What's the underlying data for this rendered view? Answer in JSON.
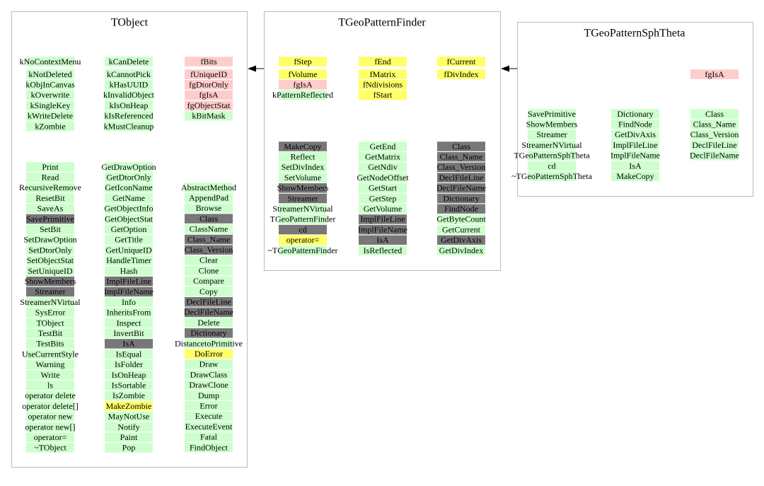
{
  "boxes": [
    {
      "title": "TObject",
      "columns": [
        [
          {
            "label": "kNoContextMenu",
            "color": "#ccffcc"
          }
        ],
        [
          {
            "label": "kCanDelete",
            "color": "#ccffcc"
          }
        ],
        [
          {
            "label": "fBits",
            "color": "#ffcccc"
          }
        ],
        [
          {
            "label": "kNotDeleted",
            "color": "#ccffcc"
          },
          {
            "label": "kObjInCanvas",
            "color": "#ccffcc"
          },
          {
            "label": "kOverwrite",
            "color": "#ccffcc"
          },
          {
            "label": "kSingleKey",
            "color": "#ccffcc"
          },
          {
            "label": "kWriteDelete",
            "color": "#ccffcc"
          },
          {
            "label": "kZombie",
            "color": "#ccffcc"
          }
        ],
        [
          {
            "label": "kCannotPick",
            "color": "#ccffcc"
          },
          {
            "label": "kHasUUID",
            "color": "#ccffcc"
          },
          {
            "label": "kInvalidObject",
            "color": "#ccffcc"
          },
          {
            "label": "kIsOnHeap",
            "color": "#ccffcc"
          },
          {
            "label": "kIsReferenced",
            "color": "#ccffcc"
          },
          {
            "label": "kMustCleanup",
            "color": "#ccffcc"
          }
        ],
        [
          {
            "label": "fUniqueID",
            "color": "#ffcccc"
          },
          {
            "label": "fgDtorOnly",
            "color": "#ffcccc"
          },
          {
            "label": "fgIsA",
            "color": "#ffcccc"
          },
          {
            "label": "fgObjectStat",
            "color": "#ffcccc"
          },
          {
            "label": "kBitMask",
            "color": "#ccffcc"
          }
        ],
        [
          {
            "label": "Print",
            "color": "#ccffcc"
          },
          {
            "label": "Read",
            "color": "#ccffcc"
          },
          {
            "label": "RecursiveRemove",
            "color": "#ccffcc"
          },
          {
            "label": "ResetBit",
            "color": "#ccffcc"
          },
          {
            "label": "SaveAs",
            "color": "#ccffcc"
          },
          {
            "label": "SavePrimitive",
            "color": "#777777"
          },
          {
            "label": "SetBit",
            "color": "#ccffcc"
          },
          {
            "label": "SetDrawOption",
            "color": "#ccffcc"
          },
          {
            "label": "SetDtorOnly",
            "color": "#ccffcc"
          },
          {
            "label": "SetObjectStat",
            "color": "#ccffcc"
          },
          {
            "label": "SetUniqueID",
            "color": "#ccffcc"
          },
          {
            "label": "ShowMembers",
            "color": "#777777"
          },
          {
            "label": "Streamer",
            "color": "#777777"
          },
          {
            "label": "StreamerNVirtual",
            "color": "#ccffcc"
          },
          {
            "label": "SysError",
            "color": "#ccffcc"
          },
          {
            "label": "TObject",
            "color": "#ccffcc"
          },
          {
            "label": "TestBit",
            "color": "#ccffcc"
          },
          {
            "label": "TestBits",
            "color": "#ccffcc"
          },
          {
            "label": "UseCurrentStyle",
            "color": "#ccffcc"
          },
          {
            "label": "Warning",
            "color": "#ccffcc"
          },
          {
            "label": "Write",
            "color": "#ccffcc"
          },
          {
            "label": "ls",
            "color": "#ccffcc"
          },
          {
            "label": "operator delete",
            "color": "#ccffcc"
          },
          {
            "label": "operator delete[]",
            "color": "#ccffcc"
          },
          {
            "label": "operator new",
            "color": "#ccffcc"
          },
          {
            "label": "operator new[]",
            "color": "#ccffcc"
          },
          {
            "label": "operator=",
            "color": "#ccffcc"
          },
          {
            "label": "~TObject",
            "color": "#ccffcc"
          }
        ],
        [
          {
            "label": "GetDrawOption",
            "color": "#ccffcc"
          },
          {
            "label": "GetDtorOnly",
            "color": "#ccffcc"
          },
          {
            "label": "GetIconName",
            "color": "#ccffcc"
          },
          {
            "label": "GetName",
            "color": "#ccffcc"
          },
          {
            "label": "GetObjectInfo",
            "color": "#ccffcc"
          },
          {
            "label": "GetObjectStat",
            "color": "#ccffcc"
          },
          {
            "label": "GetOption",
            "color": "#ccffcc"
          },
          {
            "label": "GetTitle",
            "color": "#ccffcc"
          },
          {
            "label": "GetUniqueID",
            "color": "#ccffcc"
          },
          {
            "label": "HandleTimer",
            "color": "#ccffcc"
          },
          {
            "label": "Hash",
            "color": "#ccffcc"
          },
          {
            "label": "ImplFileLine",
            "color": "#777777"
          },
          {
            "label": "ImplFileName",
            "color": "#777777"
          },
          {
            "label": "Info",
            "color": "#ccffcc"
          },
          {
            "label": "InheritsFrom",
            "color": "#ccffcc"
          },
          {
            "label": "Inspect",
            "color": "#ccffcc"
          },
          {
            "label": "InvertBit",
            "color": "#ccffcc"
          },
          {
            "label": "IsA",
            "color": "#777777"
          },
          {
            "label": "IsEqual",
            "color": "#ccffcc"
          },
          {
            "label": "IsFolder",
            "color": "#ccffcc"
          },
          {
            "label": "IsOnHeap",
            "color": "#ccffcc"
          },
          {
            "label": "IsSortable",
            "color": "#ccffcc"
          },
          {
            "label": "IsZombie",
            "color": "#ccffcc"
          },
          {
            "label": "MakeZombie",
            "color": "#ffff66"
          },
          {
            "label": "MayNotUse",
            "color": "#ccffcc"
          },
          {
            "label": "Notify",
            "color": "#ccffcc"
          },
          {
            "label": "Paint",
            "color": "#ccffcc"
          },
          {
            "label": "Pop",
            "color": "#ccffcc"
          }
        ],
        [
          {
            "label": "AbstractMethod",
            "color": "#ccffcc"
          },
          {
            "label": "AppendPad",
            "color": "#ccffcc"
          },
          {
            "label": "Browse",
            "color": "#ccffcc"
          },
          {
            "label": "Class",
            "color": "#777777"
          },
          {
            "label": "ClassName",
            "color": "#ccffcc"
          },
          {
            "label": "Class_Name",
            "color": "#777777"
          },
          {
            "label": "Class_Version",
            "color": "#777777"
          },
          {
            "label": "Clear",
            "color": "#ccffcc"
          },
          {
            "label": "Clone",
            "color": "#ccffcc"
          },
          {
            "label": "Compare",
            "color": "#ccffcc"
          },
          {
            "label": "Copy",
            "color": "#ccffcc"
          },
          {
            "label": "DeclFileLine",
            "color": "#777777"
          },
          {
            "label": "DeclFileName",
            "color": "#777777"
          },
          {
            "label": "Delete",
            "color": "#ccffcc"
          },
          {
            "label": "Dictionary",
            "color": "#777777"
          },
          {
            "label": "DistancetoPrimitive",
            "color": "#ccffcc"
          },
          {
            "label": "DoError",
            "color": "#ffff66"
          },
          {
            "label": "Draw",
            "color": "#ccffcc"
          },
          {
            "label": "DrawClass",
            "color": "#ccffcc"
          },
          {
            "label": "DrawClone",
            "color": "#ccffcc"
          },
          {
            "label": "Dump",
            "color": "#ccffcc"
          },
          {
            "label": "Error",
            "color": "#ccffcc"
          },
          {
            "label": "Execute",
            "color": "#ccffcc"
          },
          {
            "label": "ExecuteEvent",
            "color": "#ccffcc"
          },
          {
            "label": "Fatal",
            "color": "#ccffcc"
          },
          {
            "label": "FindObject",
            "color": "#ccffcc"
          }
        ]
      ]
    },
    {
      "title": "TGeoPatternFinder",
      "columns": [
        [
          {
            "label": "fStep",
            "color": "#ffff66"
          }
        ],
        [
          {
            "label": "fEnd",
            "color": "#ffff66"
          }
        ],
        [
          {
            "label": "fCurrent",
            "color": "#ffff66"
          }
        ],
        [
          {
            "label": "fVolume",
            "color": "#ffff66"
          },
          {
            "label": "fgIsA",
            "color": "#ffcccc"
          },
          {
            "label": "kPatternReflected",
            "color": "#ccffcc"
          }
        ],
        [
          {
            "label": "fMatrix",
            "color": "#ffff66"
          },
          {
            "label": "fNdivisions",
            "color": "#ffff66"
          },
          {
            "label": "fStart",
            "color": "#ffff66"
          }
        ],
        [
          {
            "label": "fDivIndex",
            "color": "#ffff66"
          }
        ],
        [
          {
            "label": "MakeCopy",
            "color": "#777777"
          },
          {
            "label": "Reflect",
            "color": "#ccffcc"
          },
          {
            "label": "SetDivIndex",
            "color": "#ccffcc"
          },
          {
            "label": "SetVolume",
            "color": "#ccffcc"
          },
          {
            "label": "ShowMembers",
            "color": "#777777"
          },
          {
            "label": "Streamer",
            "color": "#777777"
          },
          {
            "label": "StreamerNVirtual",
            "color": "#ccffcc"
          },
          {
            "label": "TGeoPatternFinder",
            "color": "#ccffcc"
          },
          {
            "label": "cd",
            "color": "#777777"
          },
          {
            "label": "operator=",
            "color": "#ffff66"
          },
          {
            "label": "~TGeoPatternFinder",
            "color": "#ccffcc"
          }
        ],
        [
          {
            "label": "GetEnd",
            "color": "#ccffcc"
          },
          {
            "label": "GetMatrix",
            "color": "#ccffcc"
          },
          {
            "label": "GetNdiv",
            "color": "#ccffcc"
          },
          {
            "label": "GetNodeOffset",
            "color": "#ccffcc"
          },
          {
            "label": "GetStart",
            "color": "#ccffcc"
          },
          {
            "label": "GetStep",
            "color": "#ccffcc"
          },
          {
            "label": "GetVolume",
            "color": "#ccffcc"
          },
          {
            "label": "ImplFileLine",
            "color": "#777777"
          },
          {
            "label": "ImplFileName",
            "color": "#777777"
          },
          {
            "label": "IsA",
            "color": "#777777"
          },
          {
            "label": "IsReflected",
            "color": "#ccffcc"
          }
        ],
        [
          {
            "label": "Class",
            "color": "#777777"
          },
          {
            "label": "Class_Name",
            "color": "#777777"
          },
          {
            "label": "Class_Version",
            "color": "#777777"
          },
          {
            "label": "DeclFileLine",
            "color": "#777777"
          },
          {
            "label": "DeclFileName",
            "color": "#777777"
          },
          {
            "label": "Dictionary",
            "color": "#777777"
          },
          {
            "label": "FindNode",
            "color": "#777777"
          },
          {
            "label": "GetByteCount",
            "color": "#ccffcc"
          },
          {
            "label": "GetCurrent",
            "color": "#ccffcc"
          },
          {
            "label": "GetDivAxis",
            "color": "#777777"
          },
          {
            "label": "GetDivIndex",
            "color": "#ccffcc"
          }
        ]
      ]
    },
    {
      "title": "TGeoPatternSphTheta",
      "columns": [
        [
          {
            "label": "fgIsA",
            "color": "#ffcccc"
          }
        ],
        [
          {
            "label": "SavePrimitive",
            "color": "#ccffcc"
          },
          {
            "label": "ShowMembers",
            "color": "#ccffcc"
          },
          {
            "label": "Streamer",
            "color": "#ccffcc"
          },
          {
            "label": "StreamerNVirtual",
            "color": "#ccffcc"
          },
          {
            "label": "TGeoPatternSphTheta",
            "color": "#ccffcc"
          },
          {
            "label": "cd",
            "color": "#ccffcc"
          },
          {
            "label": "~TGeoPatternSphTheta",
            "color": "#ccffcc"
          }
        ],
        [
          {
            "label": "Dictionary",
            "color": "#ccffcc"
          },
          {
            "label": "FindNode",
            "color": "#ccffcc"
          },
          {
            "label": "GetDivAxis",
            "color": "#ccffcc"
          },
          {
            "label": "ImplFileLine",
            "color": "#ccffcc"
          },
          {
            "label": "ImplFileName",
            "color": "#ccffcc"
          },
          {
            "label": "IsA",
            "color": "#ccffcc"
          },
          {
            "label": "MakeCopy",
            "color": "#ccffcc"
          }
        ],
        [
          {
            "label": "Class",
            "color": "#ccffcc"
          },
          {
            "label": "Class_Name",
            "color": "#ccffcc"
          },
          {
            "label": "Class_Version",
            "color": "#ccffcc"
          },
          {
            "label": "DeclFileLine",
            "color": "#ccffcc"
          },
          {
            "label": "DeclFileName",
            "color": "#ccffcc"
          }
        ]
      ]
    }
  ]
}
